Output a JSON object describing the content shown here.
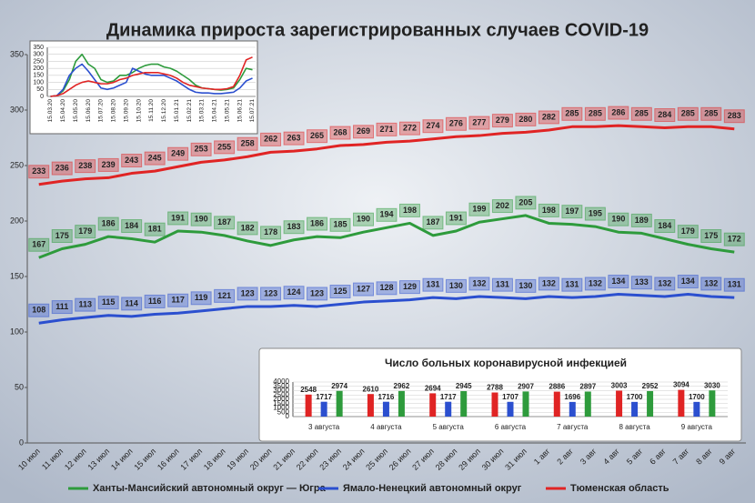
{
  "chart_data": [
    {
      "type": "line",
      "title": "Динамика прироста зарегистрированных случаев COVID-19",
      "categories": [
        "10 июл",
        "11 июл",
        "12 июл",
        "13 июл",
        "14 июл",
        "15 июл",
        "16 июл",
        "17 июл",
        "18 июл",
        "19 июл",
        "20 июл",
        "21 июл",
        "22 июл",
        "23 июл",
        "24 июл",
        "25 июл",
        "26 июл",
        "27 июл",
        "28 июл",
        "29 июл",
        "30 июл",
        "31 июл",
        "1 авг",
        "2 авг",
        "3 авг",
        "4 авг",
        "5 авг",
        "6 авг",
        "7 авг",
        "8 авг",
        "9 авг"
      ],
      "series": [
        {
          "name": "Ханты-Мансийский автономный округ — Югра",
          "color": "#2e9b3c",
          "values": [
            167,
            175,
            179,
            186,
            184,
            181,
            191,
            190,
            187,
            182,
            178,
            183,
            186,
            185,
            190,
            194,
            198,
            187,
            191,
            199,
            202,
            205,
            198,
            197,
            195,
            190,
            189,
            184,
            179,
            175,
            172
          ]
        },
        {
          "name": "Ямало-Ненецкий автономный округ",
          "color": "#2b4fcf",
          "values": [
            108,
            111,
            113,
            115,
            114,
            116,
            117,
            119,
            121,
            123,
            123,
            124,
            123,
            125,
            127,
            128,
            129,
            131,
            130,
            132,
            131,
            130,
            132,
            131,
            132,
            134,
            133,
            132,
            134,
            132,
            131
          ]
        },
        {
          "name": "Тюменская область",
          "color": "#e02424",
          "values": [
            233,
            236,
            238,
            239,
            243,
            245,
            249,
            253,
            255,
            258,
            262,
            263,
            265,
            268,
            269,
            271,
            272,
            274,
            276,
            277,
            279,
            280,
            282,
            285,
            285,
            286,
            285,
            284,
            285,
            285,
            283
          ]
        }
      ],
      "ylim": [
        0,
        350
      ],
      "yticks": [
        0,
        50,
        100,
        150,
        200,
        250,
        300,
        350
      ],
      "grid": false,
      "data_labels": true,
      "legend": "bottom"
    },
    {
      "type": "line",
      "categories": [
        "15.03.20",
        null,
        "15.04.20",
        null,
        "15.05.20",
        null,
        "15.06.20",
        null,
        "15.07.20",
        null,
        "15.08.20",
        null,
        "15.09.20",
        null,
        "15.10.20",
        null,
        "15.11.20",
        null,
        "15.12.20",
        null,
        "15.01.21",
        null,
        "15.02.21",
        null,
        "15.03.21",
        null,
        "15.04.21",
        null,
        "15.05.21",
        null,
        "15.06.21",
        null,
        "15.07.21"
      ],
      "series": [
        {
          "color": "#2e9b3c",
          "values": [
            0,
            5,
            40,
            120,
            250,
            300,
            230,
            200,
            120,
            100,
            110,
            150,
            150,
            170,
            200,
            220,
            230,
            230,
            210,
            200,
            180,
            150,
            120,
            80,
            60,
            55,
            50,
            45,
            50,
            60,
            120,
            200,
            190
          ]
        },
        {
          "color": "#2b4fcf",
          "values": [
            0,
            5,
            50,
            150,
            200,
            230,
            180,
            120,
            60,
            50,
            60,
            80,
            100,
            200,
            180,
            160,
            150,
            150,
            150,
            130,
            110,
            80,
            50,
            30,
            25,
            25,
            20,
            20,
            25,
            30,
            60,
            110,
            130
          ]
        },
        {
          "color": "#e02424",
          "values": [
            0,
            5,
            20,
            50,
            80,
            100,
            110,
            100,
            90,
            90,
            100,
            120,
            130,
            150,
            160,
            170,
            170,
            170,
            160,
            150,
            130,
            100,
            80,
            70,
            60,
            55,
            50,
            50,
            55,
            70,
            150,
            260,
            280
          ]
        }
      ],
      "ylim": [
        0,
        350
      ],
      "yticks": [
        0,
        50,
        100,
        150,
        200,
        250,
        300,
        350
      ],
      "grid": true,
      "data_labels": false
    },
    {
      "type": "bar",
      "title": "Число больных коронавирусной  инфекцией",
      "categories": [
        "3 августа",
        "4 августа",
        "5 августа",
        "6 августа",
        "7 августа",
        "8 августа",
        "9 августа"
      ],
      "series": [
        {
          "color": "#e02424",
          "values": [
            2548,
            2610,
            2694,
            2788,
            2886,
            3003,
            3094
          ]
        },
        {
          "color": "#2b4fcf",
          "values": [
            1717,
            1716,
            1717,
            1707,
            1696,
            1700,
            1700
          ]
        },
        {
          "color": "#2e9b3c",
          "values": [
            2974,
            2962,
            2945,
            2907,
            2897,
            2952,
            3030
          ]
        }
      ],
      "ylim": [
        0,
        4000
      ],
      "yticks": [
        0,
        500,
        1000,
        1500,
        2000,
        2500,
        3000,
        3500,
        4000
      ],
      "grid": true,
      "data_labels": true
    }
  ]
}
